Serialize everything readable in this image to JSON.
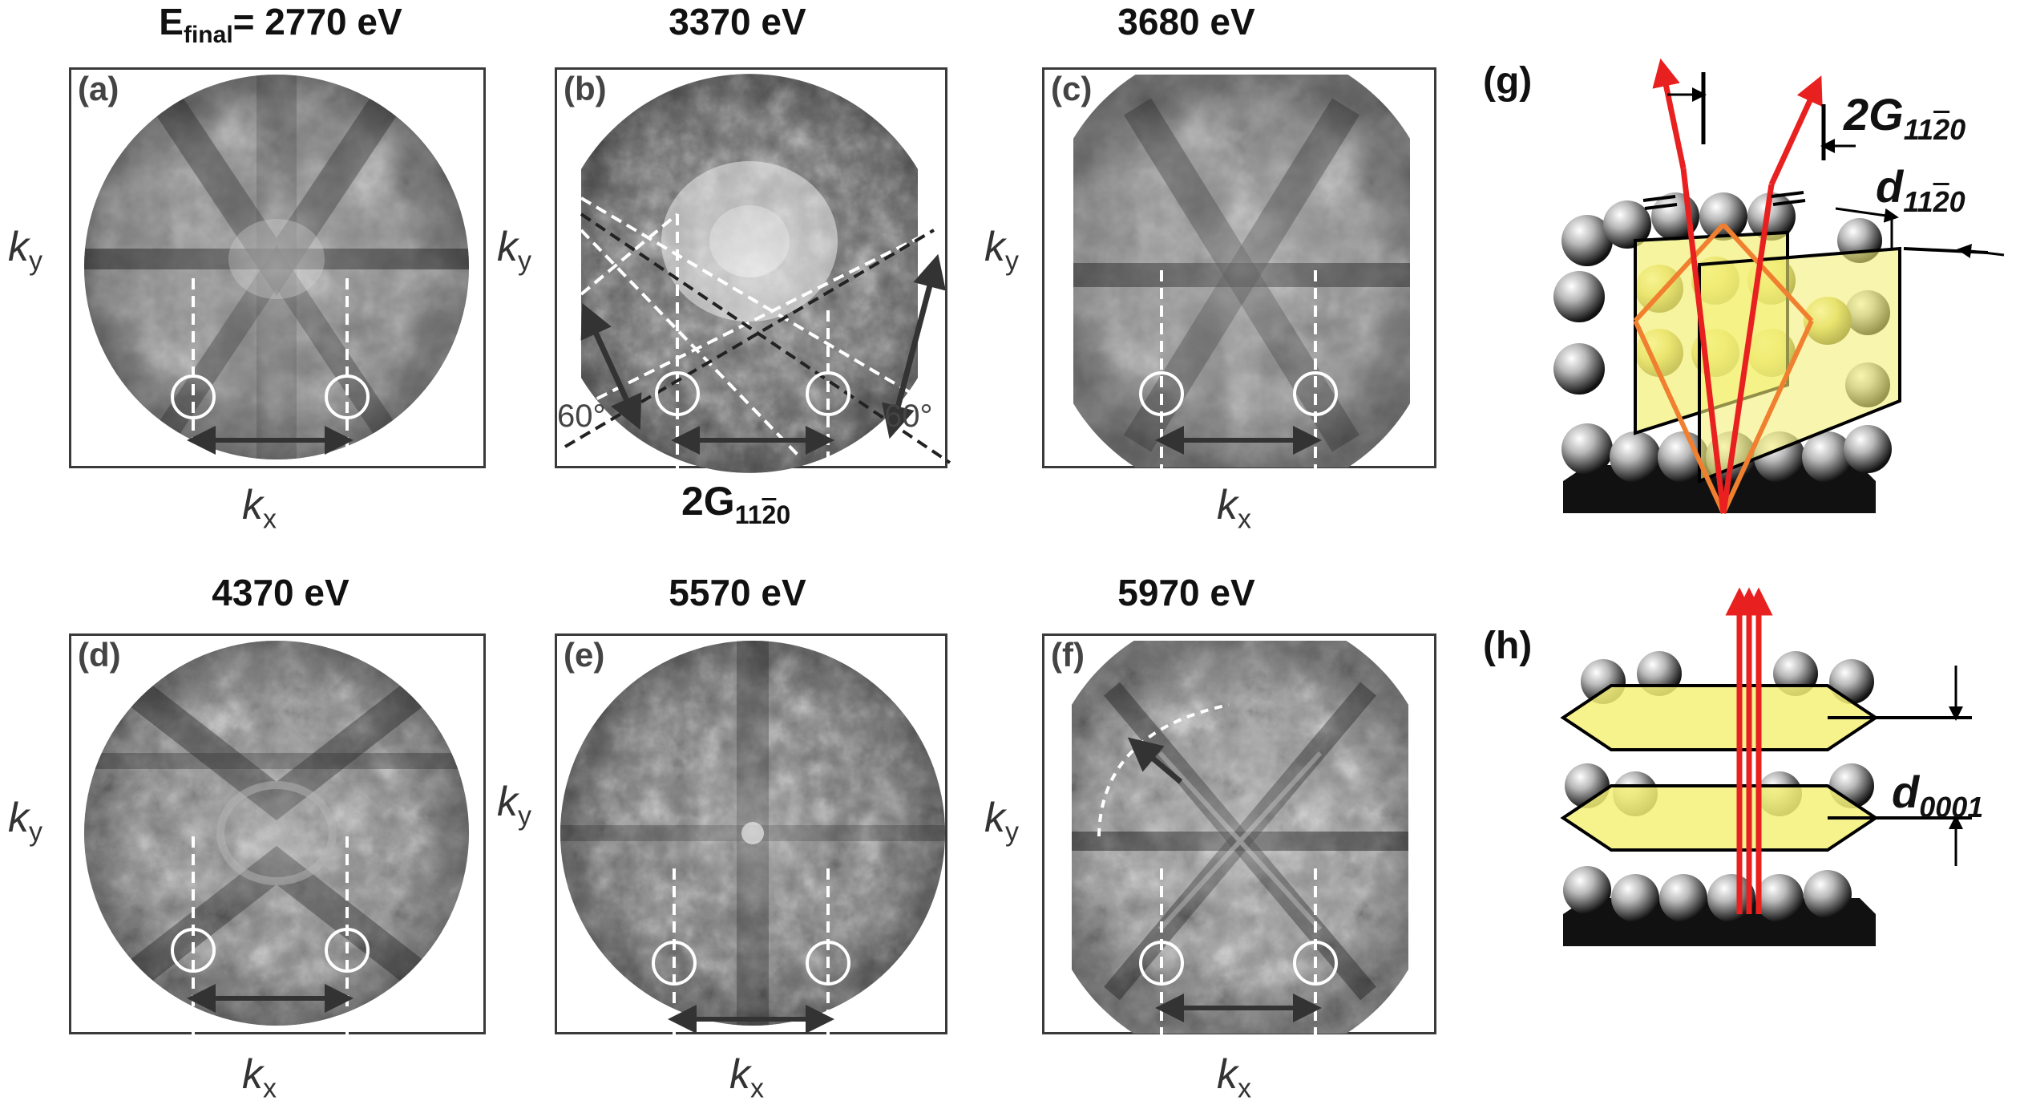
{
  "titles": {
    "a_prefix": "E",
    "a_sub": "final",
    "a_rest": "= 2770 eV",
    "b": "3370 eV",
    "c": "3680 eV",
    "d": "4370 eV",
    "e": "5570 eV",
    "f": "5970 eV"
  },
  "panel_labels": {
    "a": "(a)",
    "b": "(b)",
    "c": "(c)",
    "d": "(d)",
    "e": "(e)",
    "f": "(f)",
    "g": "(g)",
    "h": "(h)"
  },
  "axes": {
    "kx": "k",
    "kx_sub": "x",
    "ky": "k",
    "ky_sub": "y"
  },
  "annotations": {
    "two_g_prefix": "2G",
    "g_index_1": "11",
    "g_index_bar": "2",
    "g_index_2": "0",
    "d_prefix": "d",
    "d0001_sub": "0001",
    "angle": "60°"
  },
  "colors": {
    "plane_fill": "#f4f078",
    "beam_red": "#e8201f",
    "beam_orange": "#f08030",
    "panel_border": "#3a3a3a"
  }
}
